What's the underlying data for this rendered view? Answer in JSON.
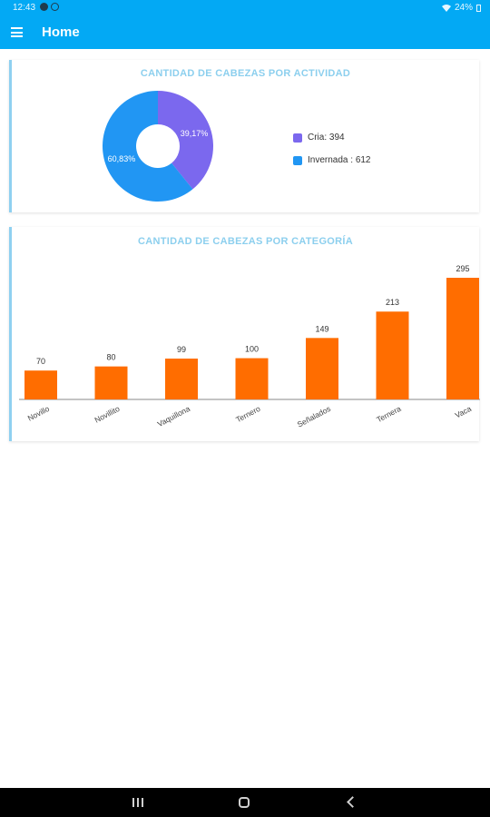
{
  "status_bar": {
    "time": "12:43",
    "battery": "24%"
  },
  "app_bar": {
    "title": "Home"
  },
  "colors": {
    "primary": "#03a9f4",
    "cria": "#7b68ee",
    "invernada": "#2196f3",
    "bar": "#ff6d00"
  },
  "chart_data": [
    {
      "type": "pie",
      "title": "CANTIDAD DE CABEZAS POR ACTIVIDAD",
      "donut": true,
      "slices": [
        {
          "label": "Cria",
          "value": 394,
          "percent_label": "39,17%",
          "color": "#7b68ee"
        },
        {
          "label": "Invernada",
          "value": 612,
          "percent_label": "60,83%",
          "color": "#2196f3"
        }
      ],
      "legend": [
        "Cria: 394",
        "Invernada : 612"
      ],
      "legend_position": "right"
    },
    {
      "type": "bar",
      "title": "CANTIDAD DE CABEZAS POR CATEGORÍA",
      "categories": [
        "Novillo",
        "Novillito",
        "Vaquillona",
        "Ternero",
        "Señalados",
        "Ternera",
        "Vaca"
      ],
      "values": [
        70,
        80,
        99,
        100,
        149,
        213,
        295
      ],
      "ylim": [
        0,
        295
      ],
      "color": "#ff6d00",
      "grid": false
    }
  ]
}
